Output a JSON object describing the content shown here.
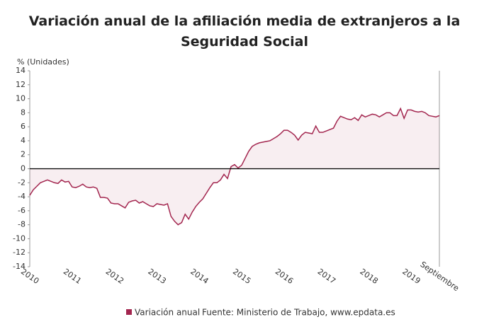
{
  "chart_data": {
    "type": "line",
    "title": "Variación anual de la afiliación media de extranjeros a la Seguridad Social",
    "y_label": "% (Unidades)",
    "source": "Fuente: Ministerio de Trabajo, www.epdata.es",
    "categories": [
      "2010",
      null,
      null,
      null,
      null,
      null,
      null,
      null,
      null,
      null,
      null,
      null,
      "2011",
      null,
      null,
      null,
      null,
      null,
      null,
      null,
      null,
      null,
      null,
      null,
      "2012",
      null,
      null,
      null,
      null,
      null,
      null,
      null,
      null,
      null,
      null,
      null,
      "2013",
      null,
      null,
      null,
      null,
      null,
      null,
      null,
      null,
      null,
      null,
      null,
      "2014",
      null,
      null,
      null,
      null,
      null,
      null,
      null,
      null,
      null,
      null,
      null,
      "2015",
      null,
      null,
      null,
      null,
      null,
      null,
      null,
      null,
      null,
      null,
      null,
      "2016",
      null,
      null,
      null,
      null,
      null,
      null,
      null,
      null,
      null,
      null,
      null,
      "2017",
      null,
      null,
      null,
      null,
      null,
      null,
      null,
      null,
      null,
      null,
      null,
      "2018",
      null,
      null,
      null,
      null,
      null,
      null,
      null,
      null,
      null,
      null,
      null,
      "2019",
      null,
      null,
      null,
      null,
      null,
      null,
      null,
      "Septiembre"
    ],
    "series": [
      {
        "name": "Variación anual",
        "color": "#a3264f",
        "values": [
          -3.8,
          -3.0,
          -2.5,
          -2.0,
          -1.8,
          -1.6,
          -1.8,
          -2.0,
          -2.1,
          -1.6,
          -1.9,
          -1.8,
          -2.6,
          -2.7,
          -2.5,
          -2.2,
          -2.6,
          -2.7,
          -2.6,
          -2.8,
          -4.1,
          -4.1,
          -4.2,
          -4.9,
          -5.0,
          -5.0,
          -5.3,
          -5.6,
          -4.8,
          -4.6,
          -4.5,
          -4.9,
          -4.7,
          -5.0,
          -5.3,
          -5.4,
          -5.0,
          -5.1,
          -5.2,
          -5.0,
          -6.8,
          -7.5,
          -8.0,
          -7.7,
          -6.5,
          -7.2,
          -6.2,
          -5.4,
          -4.8,
          -4.3,
          -3.5,
          -2.7,
          -2.0,
          -2.0,
          -1.6,
          -0.8,
          -1.4,
          0.3,
          0.6,
          0.1,
          0.5,
          1.5,
          2.5,
          3.2,
          3.5,
          3.7,
          3.8,
          3.9,
          4.0,
          4.3,
          4.6,
          5.0,
          5.5,
          5.5,
          5.2,
          4.8,
          4.1,
          4.8,
          5.2,
          5.1,
          5.0,
          6.1,
          5.2,
          5.2,
          5.4,
          5.6,
          5.8,
          6.8,
          7.5,
          7.3,
          7.1,
          7.0,
          7.3,
          6.9,
          7.7,
          7.4,
          7.6,
          7.8,
          7.7,
          7.4,
          7.7,
          8.0,
          8.0,
          7.6,
          7.6,
          8.6,
          7.2,
          8.4,
          8.4,
          8.2,
          8.1,
          8.2,
          8.0,
          7.6,
          7.5,
          7.4,
          7.6
        ]
      }
    ],
    "area": true,
    "ylim": [
      -14,
      14
    ],
    "yticks": [
      -14,
      -12,
      -10,
      -8,
      -6,
      -4,
      -2,
      0,
      2,
      4,
      6,
      8,
      10,
      12,
      14
    ]
  }
}
